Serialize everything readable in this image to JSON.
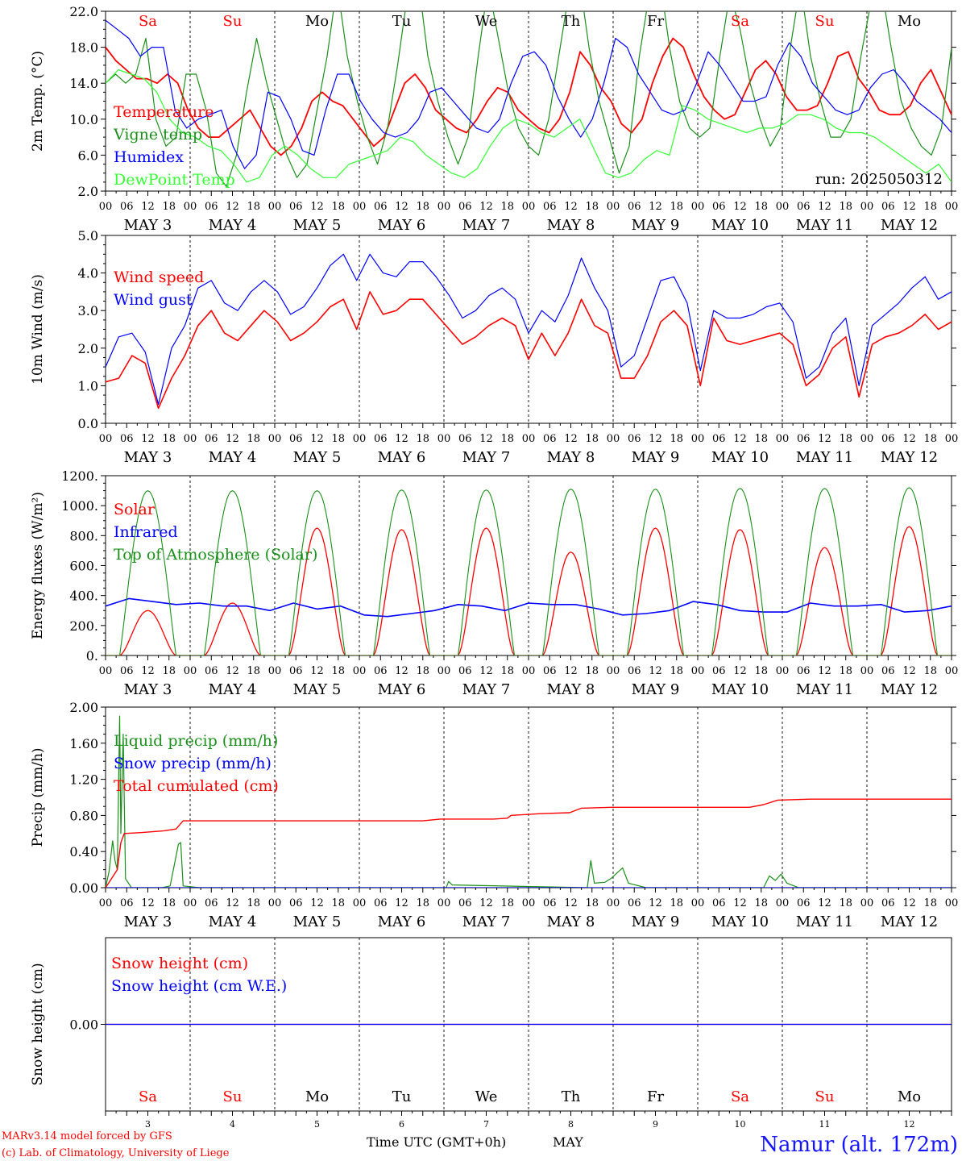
{
  "station": "Namur (alt. 172m)",
  "run_label": "run: 2025050312",
  "credits": [
    "MARv3.14 model forced by GFS",
    "(c) Lab. of Climatology, University of Liege"
  ],
  "xlabel": "Time UTC (GMT+0h)",
  "month_label": "MAY",
  "days": [
    "Sa",
    "Su",
    "Mo",
    "Tu",
    "We",
    "Th",
    "Fr",
    "Sa",
    "Su",
    "Mo"
  ],
  "day_colors": [
    "#ff0000",
    "#ff0000",
    "#000000",
    "#000000",
    "#000000",
    "#000000",
    "#000000",
    "#ff0000",
    "#ff0000",
    "#000000"
  ],
  "date_labels": [
    "MAY  3",
    "MAY  4",
    "MAY  5",
    "MAY  6",
    "MAY  7",
    "MAY  8",
    "MAY  9",
    "MAY 10",
    "MAY 11",
    "MAY 12"
  ],
  "day_numbers": [
    "3",
    "4",
    "5",
    "6",
    "7",
    "8",
    "9",
    "10",
    "11",
    "12"
  ],
  "hour_ticks": [
    "00",
    "06",
    "12",
    "18"
  ],
  "hour_end": "00",
  "chart_data": [
    {
      "type": "line",
      "ylabel": "2m Temp. (°C)",
      "ylim": [
        2.0,
        22.0
      ],
      "yticks": [
        "2.0",
        "6.0",
        "10.0",
        "14.0",
        "18.0",
        "22.0"
      ],
      "x_hours_step": 3,
      "series": [
        {
          "name": "Temperature",
          "color": "#ff0000",
          "values": [
            18,
            16.5,
            15.5,
            14.5,
            14.5,
            14,
            15,
            14,
            11,
            9,
            8,
            8,
            9,
            10,
            11,
            9,
            7,
            6,
            7,
            9,
            12,
            13,
            12,
            11.5,
            10,
            8.5,
            7,
            8,
            11,
            14,
            15,
            13.5,
            11,
            10,
            9,
            8.5,
            10,
            12,
            13.5,
            13,
            11,
            10,
            9,
            8.5,
            10,
            13,
            17.5,
            16,
            13.5,
            12,
            9.5,
            8.5,
            10,
            14,
            17,
            19,
            18,
            15,
            12.5,
            11,
            10,
            10.5,
            13,
            15.5,
            16.5,
            15,
            12.5,
            11,
            11,
            11.5,
            14,
            17,
            17.5,
            14.5,
            13,
            11,
            10.5,
            10.5,
            11.5,
            14,
            15.5,
            13,
            10.5
          ]
        },
        {
          "name": "Vigne temp",
          "color": "#1a8f1a",
          "values": [
            14,
            15,
            14,
            15,
            19,
            10,
            7,
            8,
            15,
            15,
            11,
            4,
            2.5,
            6,
            13,
            19,
            14,
            10,
            6,
            3.5,
            5,
            11,
            17,
            25,
            17,
            12,
            8,
            5,
            9,
            16,
            24,
            26,
            17,
            12,
            8,
            5,
            8,
            17,
            25,
            19,
            13,
            9,
            7,
            6,
            10,
            17,
            24,
            26,
            18,
            12,
            8,
            4,
            7,
            17,
            24,
            26,
            18,
            12,
            9,
            8,
            9,
            17,
            24,
            20,
            14,
            10,
            7,
            9,
            18,
            25,
            17,
            12,
            8,
            8,
            10,
            17,
            23,
            25,
            18,
            12,
            9,
            7,
            6,
            9,
            18
          ]
        },
        {
          "name": "Humidex",
          "color": "#0000ff",
          "values": [
            21,
            20,
            19,
            17,
            18,
            18,
            11,
            9,
            10,
            10.5,
            11,
            7,
            4.5,
            6,
            13,
            12.5,
            10,
            6.5,
            6,
            11,
            15,
            15,
            12,
            10,
            8.5,
            8,
            8.5,
            10,
            13,
            13.5,
            12,
            10.5,
            9,
            8.5,
            10,
            14,
            17,
            17.5,
            16,
            12.5,
            10,
            8,
            10,
            14,
            19,
            18,
            15,
            13,
            11,
            10.5,
            11,
            14,
            17.5,
            16,
            14,
            12,
            12,
            12.5,
            16,
            18.5,
            17,
            14,
            12.5,
            11,
            10.5,
            11,
            13.5,
            15,
            15.5,
            14,
            12,
            11,
            10,
            8.5
          ]
        },
        {
          "name": "DewPoint Temp",
          "color": "#33ff33",
          "values": [
            14,
            15.5,
            15,
            14.5,
            13,
            10,
            8.5,
            8,
            7,
            6.5,
            5,
            3,
            3.5,
            6,
            7,
            6,
            4.5,
            3.5,
            3.5,
            5,
            5.5,
            6,
            6.5,
            8,
            7.5,
            6,
            5,
            4,
            3.5,
            4.5,
            7,
            9,
            10,
            9.5,
            8.5,
            8,
            9,
            10,
            7,
            4,
            3.5,
            4,
            5.5,
            6.5,
            6,
            11.5,
            11,
            10,
            9.5,
            9,
            8.5,
            9,
            9,
            9.5,
            10.5,
            10.5,
            10,
            9,
            8.5,
            8.5,
            8,
            7,
            6,
            5,
            4,
            5,
            3
          ]
        }
      ]
    },
    {
      "type": "line",
      "ylabel": "10m Wind (m/s)",
      "ylim": [
        0.0,
        5.0
      ],
      "yticks": [
        "0.0",
        "1.0",
        "2.0",
        "3.0",
        "4.0",
        "5.0"
      ],
      "x_hours_step": 3,
      "series": [
        {
          "name": "Wind speed",
          "color": "#ff0000",
          "values": [
            1.1,
            1.2,
            1.8,
            1.6,
            0.4,
            1.2,
            1.8,
            2.6,
            3.0,
            2.4,
            2.2,
            2.6,
            3.0,
            2.7,
            2.2,
            2.4,
            2.7,
            3.1,
            3.3,
            2.5,
            3.5,
            2.9,
            3.0,
            3.3,
            3.3,
            2.9,
            2.5,
            2.1,
            2.3,
            2.6,
            2.8,
            2.6,
            1.7,
            2.4,
            1.8,
            2.4,
            3.3,
            2.6,
            2.4,
            1.2,
            1.2,
            1.8,
            2.7,
            3.0,
            2.6,
            1.0,
            2.8,
            2.2,
            2.1,
            2.2,
            2.3,
            2.4,
            2.1,
            1.0,
            1.3,
            2.0,
            2.3,
            0.7,
            2.1,
            2.3,
            2.4,
            2.6,
            2.9,
            2.5,
            2.7
          ]
        },
        {
          "name": "Wind gust",
          "color": "#0000ff",
          "values": [
            1.5,
            2.3,
            2.4,
            1.9,
            0.5,
            2.0,
            2.6,
            3.6,
            3.8,
            3.2,
            3.0,
            3.5,
            3.8,
            3.5,
            2.9,
            3.1,
            3.6,
            4.2,
            4.5,
            3.8,
            4.5,
            4.0,
            3.9,
            4.3,
            4.3,
            3.9,
            3.4,
            2.8,
            3.0,
            3.4,
            3.6,
            3.3,
            2.4,
            3.0,
            2.7,
            3.4,
            4.4,
            3.6,
            3.0,
            1.5,
            1.8,
            2.8,
            3.8,
            3.9,
            3.2,
            1.4,
            3.0,
            2.8,
            2.8,
            2.9,
            3.1,
            3.2,
            2.7,
            1.2,
            1.5,
            2.4,
            2.8,
            1.0,
            2.6,
            2.9,
            3.2,
            3.6,
            3.9,
            3.3,
            3.5
          ]
        }
      ]
    },
    {
      "type": "line",
      "ylabel": "Energy fluxes (W/m²)",
      "ylim": [
        0,
        1200
      ],
      "yticks": [
        "0.",
        "200.",
        "400.",
        "600.",
        "800.",
        "1000.",
        "1200."
      ],
      "series": [
        {
          "name": "Solar",
          "color": "#ff0000",
          "peaks": [
            300,
            350,
            850,
            840,
            850,
            690,
            850,
            840,
            720,
            860
          ]
        },
        {
          "name": "Infrared",
          "color": "#0000ff",
          "values": [
            330,
            380,
            360,
            340,
            350,
            330,
            330,
            300,
            350,
            310,
            330,
            270,
            260,
            280,
            300,
            340,
            330,
            300,
            350,
            340,
            340,
            310,
            270,
            280,
            300,
            360,
            340,
            300,
            290,
            290,
            350,
            330,
            330,
            340,
            290,
            300,
            330
          ]
        },
        {
          "name": "Top of Atmosphere (Solar)",
          "color": "#1a8f1a",
          "peaks": [
            1100,
            1100,
            1100,
            1105,
            1105,
            1110,
            1110,
            1115,
            1115,
            1120
          ]
        }
      ]
    },
    {
      "type": "line",
      "ylabel": "Precip (mm/h)",
      "ylim": [
        0.0,
        2.0
      ],
      "yticks": [
        "0.00",
        "0.40",
        "0.80",
        "1.20",
        "1.60",
        "2.00"
      ],
      "series": [
        {
          "name": "Liquid precip (mm/h)",
          "color": "#1a8f1a",
          "points": [
            [
              0,
              0
            ],
            [
              3,
              0.18
            ],
            [
              6,
              0.52
            ],
            [
              8,
              0.3
            ],
            [
              10,
              0.2
            ],
            [
              12,
              1.9
            ],
            [
              13,
              0.6
            ],
            [
              15,
              1.7
            ],
            [
              17,
              0.1
            ],
            [
              22,
              0
            ],
            [
              48,
              0
            ],
            [
              55,
              0.02
            ],
            [
              62,
              0.48
            ],
            [
              64,
              0.5
            ],
            [
              66,
              0.02
            ],
            [
              80,
              0
            ],
            [
              290,
              0
            ],
            [
              292,
              0.07
            ],
            [
              295,
              0.03
            ],
            [
              410,
              0
            ],
            [
              413,
              0.3
            ],
            [
              416,
              0.05
            ],
            [
              425,
              0.06
            ],
            [
              430,
              0.1
            ],
            [
              440,
              0.22
            ],
            [
              445,
              0.05
            ],
            [
              460,
              0
            ],
            [
              560,
              0
            ],
            [
              565,
              0.13
            ],
            [
              570,
              0.08
            ],
            [
              575,
              0.15
            ],
            [
              580,
              0.05
            ],
            [
              590,
              0
            ],
            [
              720,
              0
            ]
          ]
        },
        {
          "name": "Snow precip (mm/h)",
          "color": "#0000ff",
          "points": [
            [
              0,
              0
            ],
            [
              720,
              0
            ]
          ]
        },
        {
          "name": "Total cumulated (cm)",
          "color": "#ff0000",
          "points": [
            [
              0,
              0
            ],
            [
              6,
              0.12
            ],
            [
              10,
              0.2
            ],
            [
              13,
              0.5
            ],
            [
              16,
              0.6
            ],
            [
              30,
              0.61
            ],
            [
              50,
              0.63
            ],
            [
              60,
              0.65
            ],
            [
              66,
              0.74
            ],
            [
              120,
              0.74
            ],
            [
              270,
              0.74
            ],
            [
              285,
              0.76
            ],
            [
              330,
              0.76
            ],
            [
              342,
              0.77
            ],
            [
              345,
              0.8
            ],
            [
              370,
              0.82
            ],
            [
              395,
              0.83
            ],
            [
              405,
              0.88
            ],
            [
              430,
              0.89
            ],
            [
              548,
              0.89
            ],
            [
              560,
              0.92
            ],
            [
              572,
              0.97
            ],
            [
              600,
              0.98
            ],
            [
              720,
              0.98
            ]
          ]
        }
      ]
    },
    {
      "type": "line",
      "ylabel": "Snow height (cm)",
      "yticks": [
        "0.00"
      ],
      "series": [
        {
          "name": "Snow height (cm)",
          "color": "#ff0000",
          "values": [
            0,
            0
          ]
        },
        {
          "name": "Snow height (cm W.E.)",
          "color": "#0000ff",
          "values": [
            0,
            0
          ]
        }
      ]
    }
  ]
}
